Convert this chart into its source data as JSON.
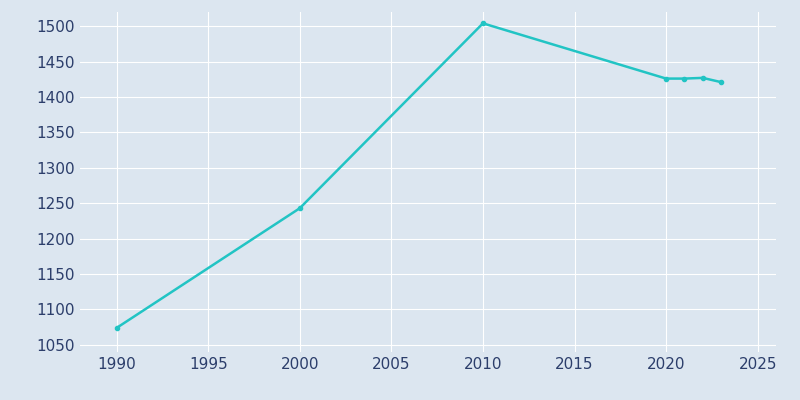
{
  "years": [
    1990,
    2000,
    2010,
    2020,
    2021,
    2022,
    2023
  ],
  "population": [
    1074,
    1243,
    1504,
    1426,
    1426,
    1427,
    1421
  ],
  "line_color": "#22C4C4",
  "marker": "o",
  "marker_size": 3,
  "line_width": 1.8,
  "bg_color": "#dce6f0",
  "xlim": [
    1988,
    2026
  ],
  "ylim": [
    1040,
    1520
  ],
  "xticks": [
    1990,
    1995,
    2000,
    2005,
    2010,
    2015,
    2020,
    2025
  ],
  "yticks": [
    1050,
    1100,
    1150,
    1200,
    1250,
    1300,
    1350,
    1400,
    1450,
    1500
  ],
  "tick_color": "#2c3e6b",
  "tick_fontsize": 11,
  "grid_color": "#ffffff",
  "grid_alpha": 1.0,
  "grid_linewidth": 0.8
}
